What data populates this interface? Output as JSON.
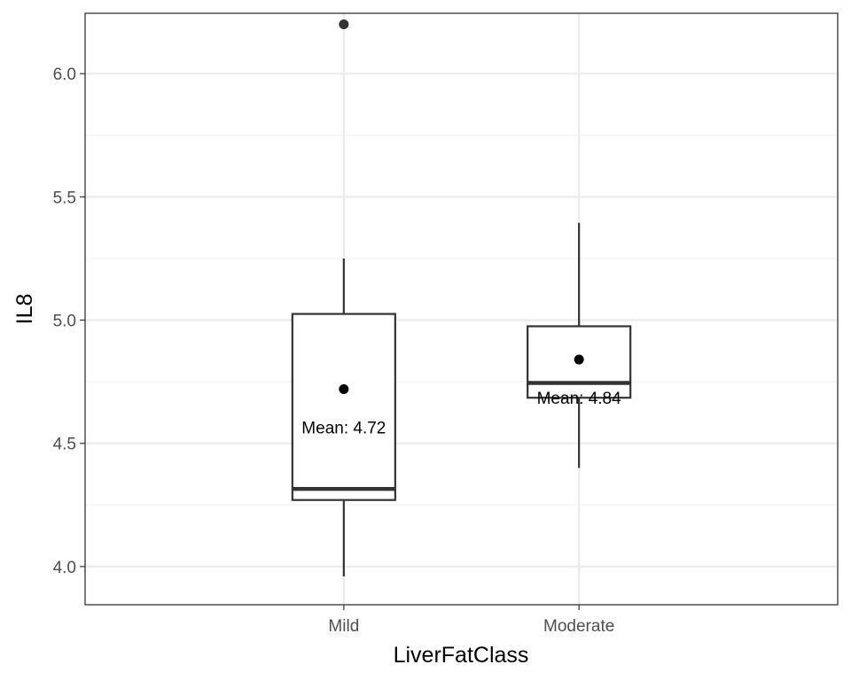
{
  "chart_data": {
    "type": "boxplot",
    "xlabel": "LiverFatClass",
    "ylabel": "IL8",
    "categories": [
      "Mild",
      "Moderate"
    ],
    "ylim": [
      3.845,
      6.245
    ],
    "y_ticks": [
      4.0,
      4.5,
      5.0,
      5.5,
      6.0
    ],
    "y_tick_labels": [
      "4.0",
      "4.5",
      "5.0",
      "5.5",
      "6.0"
    ],
    "grid": true,
    "boxes": [
      {
        "category": "Mild",
        "whisker_low": 3.96,
        "q1": 4.27,
        "median": 4.315,
        "q3": 5.025,
        "whisker_high": 5.25,
        "outliers": [
          6.2
        ],
        "mean": 4.72,
        "annotation": "Mean: 4.72"
      },
      {
        "category": "Moderate",
        "whisker_low": 4.4,
        "q1": 4.685,
        "median": 4.745,
        "q3": 4.975,
        "whisker_high": 5.395,
        "outliers": [],
        "mean": 4.84,
        "annotation": "Mean: 4.84"
      }
    ],
    "colors": {
      "box_stroke": "#333333",
      "grid_major": "#ebebeb",
      "grid_minor": "#f2f2f2",
      "panel_border": "#333333",
      "point": "#000000",
      "outlier": "#333333"
    }
  }
}
